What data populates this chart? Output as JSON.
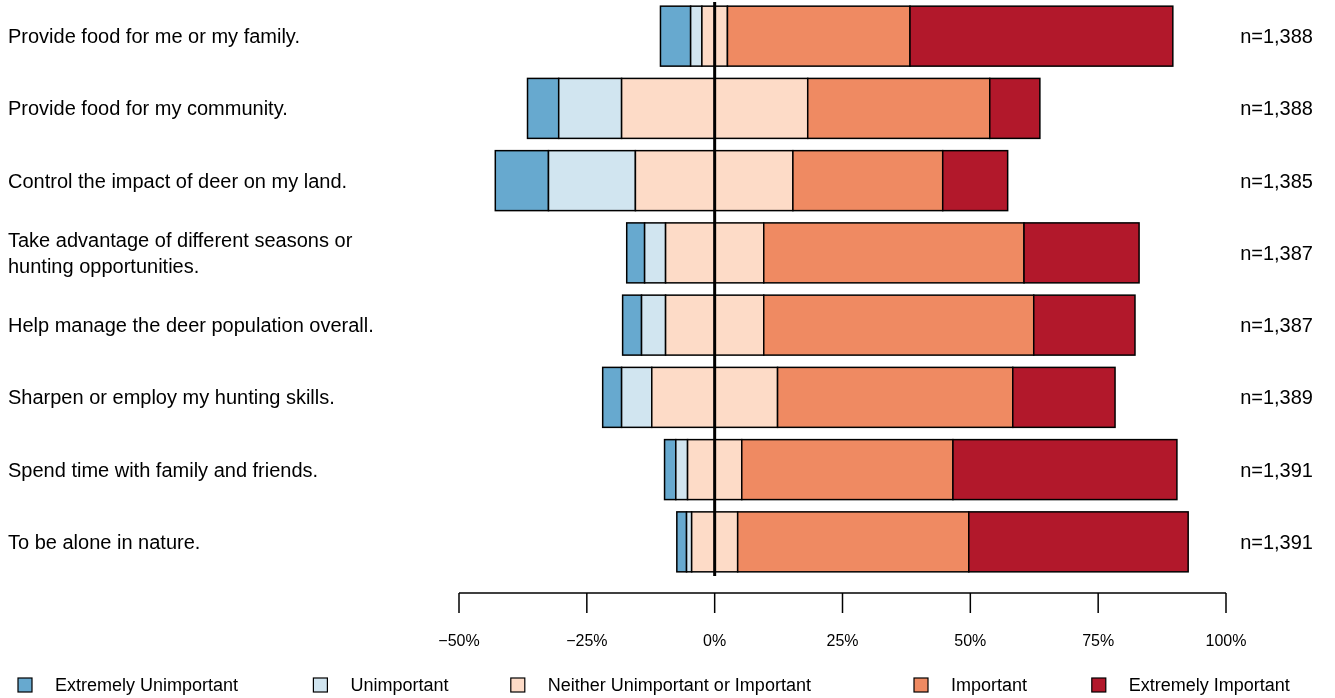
{
  "chart_data": {
    "type": "bar",
    "orientation": "horizontal",
    "categories": [
      "Provide food for me or my family.",
      "Provide food for my community.",
      "Control the impact of deer on my land.",
      "Take advantage of different seasons or hunting opportunities.",
      "Help manage the deer population overall.",
      "Sharpen or employ my hunting skills.",
      "Spend time with family and friends.",
      "To be alone in nature."
    ],
    "series": [
      {
        "name": "Extremely Unimportant",
        "color": "#67a9cf",
        "base": [
          -10.6,
          -36.6,
          -42.9,
          -17.2,
          -18.0,
          -21.9,
          -9.8,
          -7.4
        ],
        "values": [
          5.9,
          6.1,
          10.4,
          3.5,
          3.7,
          3.7,
          2.2,
          1.9
        ]
      },
      {
        "name": "Unimportant",
        "color": "#d1e5f0",
        "base": [
          -4.7,
          -30.5,
          -32.5,
          -13.7,
          -14.3,
          -18.2,
          -7.6,
          -5.5
        ],
        "values": [
          2.2,
          12.3,
          17.0,
          4.1,
          4.7,
          5.9,
          2.3,
          1.0
        ]
      },
      {
        "name": "Neither Unimportant or Important",
        "color": "#fddbc7",
        "base": [
          -2.5,
          -18.2,
          -15.5,
          -9.6,
          -9.6,
          -12.3,
          -5.3,
          -4.5
        ],
        "values": [
          5.0,
          36.4,
          30.8,
          19.2,
          19.2,
          24.6,
          10.6,
          9.0
        ]
      },
      {
        "name": "Important",
        "color": "#ef8a62",
        "base": [
          2.5,
          18.2,
          15.3,
          9.6,
          9.6,
          12.3,
          5.3,
          4.5
        ],
        "values": [
          35.7,
          35.6,
          29.3,
          50.9,
          52.8,
          46.0,
          41.3,
          45.2
        ]
      },
      {
        "name": "Extremely Important",
        "color": "#b2182b",
        "base": [
          38.2,
          53.8,
          44.6,
          60.5,
          62.4,
          58.3,
          46.6,
          49.7
        ],
        "values": [
          51.4,
          9.8,
          12.7,
          22.5,
          19.8,
          20.0,
          43.8,
          42.9
        ]
      }
    ],
    "xlim": [
      -50,
      100
    ],
    "xticks": [
      {
        "value": -50,
        "label": "−50%"
      },
      {
        "value": -25,
        "label": "−25%"
      },
      {
        "value": 0,
        "label": "0%"
      },
      {
        "value": 25,
        "label": "25%"
      },
      {
        "value": 50,
        "label": "50%"
      },
      {
        "value": 75,
        "label": "75%"
      },
      {
        "value": 100,
        "label": "100%"
      }
    ],
    "ref_lines": [
      {
        "axis": "x",
        "value": 0,
        "color": "#000000"
      }
    ],
    "annotations": [
      "n=1,388",
      "n=1,388",
      "n=1,385",
      "n=1,387",
      "n=1,387",
      "n=1,389",
      "n=1,391",
      "n=1,391"
    ],
    "legend": "bottom",
    "grid": false
  }
}
